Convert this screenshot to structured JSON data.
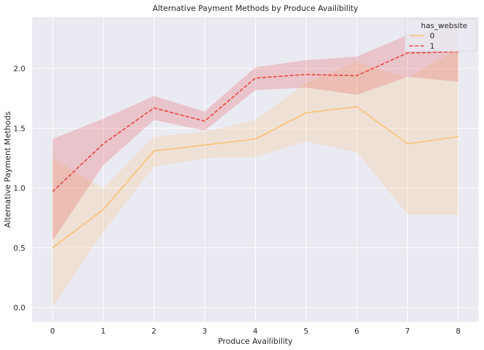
{
  "chart_data": {
    "type": "line",
    "title": "Alternative Payment Methods by Produce Availibility",
    "xlabel": "Produce Availibility",
    "ylabel": "Alternative Payment Methods",
    "x": [
      0,
      1,
      2,
      3,
      4,
      5,
      6,
      7,
      8
    ],
    "xlim": [
      -0.4,
      8.4
    ],
    "ylim": [
      -0.12,
      2.43
    ],
    "yticks": [
      0.0,
      0.5,
      1.0,
      1.5,
      2.0
    ],
    "ytick_labels": [
      "0.0",
      "0.5",
      "1.0",
      "1.5",
      "2.0"
    ],
    "xtick_labels": [
      "0",
      "1",
      "2",
      "3",
      "4",
      "5",
      "6",
      "7",
      "8"
    ],
    "grid": true,
    "legend": {
      "title": "has_website",
      "placement": "top-right"
    },
    "series": [
      {
        "name": "0",
        "color": "#fdbf6f",
        "dash": "solid",
        "values": [
          0.5,
          0.82,
          1.31,
          1.36,
          1.41,
          1.63,
          1.68,
          1.37,
          1.43
        ],
        "ci_lower": [
          0.0,
          0.63,
          1.18,
          1.25,
          1.26,
          1.39,
          1.3,
          0.78,
          0.78
        ],
        "ci_upper": [
          1.25,
          1.0,
          1.43,
          1.47,
          1.57,
          1.88,
          2.06,
          1.92,
          2.17
        ]
      },
      {
        "name": "1",
        "color": "#e8403a",
        "dash": "dashed",
        "values": [
          0.97,
          1.37,
          1.67,
          1.56,
          1.92,
          1.95,
          1.94,
          2.13,
          2.14
        ],
        "ci_lower": [
          0.56,
          1.19,
          1.57,
          1.48,
          1.82,
          1.84,
          1.78,
          1.93,
          1.89
        ],
        "ci_upper": [
          1.41,
          1.58,
          1.77,
          1.64,
          2.01,
          2.07,
          2.1,
          2.28,
          2.36
        ]
      }
    ]
  }
}
